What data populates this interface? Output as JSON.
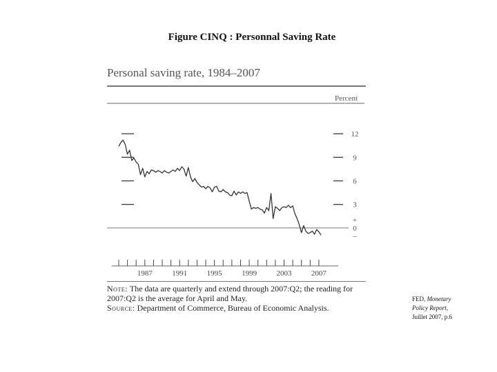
{
  "slide": {
    "title": "Figure CINQ : Personnal Saving Rate"
  },
  "chart_data": {
    "type": "line",
    "title": "Personal saving rate, 1984–2007",
    "ylabel": "Percent",
    "xlabel": "",
    "ylim": [
      -1.5,
      15
    ],
    "xlim": [
      1984.0,
      2007.8
    ],
    "y_ticks": [
      "12",
      "9",
      "6",
      "3",
      "0"
    ],
    "y_tick_values": [
      12,
      9,
      6,
      3,
      0
    ],
    "y_special_marks": [
      "+",
      "–"
    ],
    "x_ticks": [
      "1987",
      "1991",
      "1995",
      "1999",
      "2003",
      "2007"
    ],
    "x_tick_values": [
      1987,
      1991,
      1995,
      1999,
      2003,
      2007
    ],
    "x_minor_years": [
      1984,
      1985,
      1986,
      1987,
      1988,
      1989,
      1990,
      1991,
      1992,
      1993,
      1994,
      1995,
      1996,
      1997,
      1998,
      1999,
      2000,
      2001,
      2002,
      2003,
      2004,
      2005,
      2006,
      2007
    ],
    "grid": "horizontal reference at 0",
    "series": [
      {
        "name": "Personal saving rate",
        "x": [
          1984.0,
          1984.25,
          1984.5,
          1984.75,
          1985.0,
          1985.25,
          1985.5,
          1985.75,
          1986.0,
          1986.25,
          1986.5,
          1986.75,
          1987.0,
          1987.25,
          1987.5,
          1987.75,
          1988.0,
          1988.25,
          1988.5,
          1988.75,
          1989.0,
          1989.25,
          1989.5,
          1989.75,
          1990.0,
          1990.25,
          1990.5,
          1990.75,
          1991.0,
          1991.25,
          1991.5,
          1991.75,
          1992.0,
          1992.25,
          1992.5,
          1992.75,
          1993.0,
          1993.25,
          1993.5,
          1993.75,
          1994.0,
          1994.25,
          1994.5,
          1994.75,
          1995.0,
          1995.25,
          1995.5,
          1995.75,
          1996.0,
          1996.25,
          1996.5,
          1996.75,
          1997.0,
          1997.25,
          1997.5,
          1997.75,
          1998.0,
          1998.25,
          1998.5,
          1998.75,
          1999.0,
          1999.25,
          1999.5,
          1999.75,
          2000.0,
          2000.25,
          2000.5,
          2000.75,
          2001.0,
          2001.25,
          2001.5,
          2001.75,
          2002.0,
          2002.25,
          2002.5,
          2002.75,
          2003.0,
          2003.25,
          2003.5,
          2003.75,
          2004.0,
          2004.25,
          2004.5,
          2004.75,
          2005.0,
          2005.25,
          2005.5,
          2005.75,
          2006.0,
          2006.25,
          2006.5,
          2006.75,
          2007.0,
          2007.25
        ],
        "values": [
          10.4,
          10.9,
          11.2,
          10.6,
          9.4,
          9.9,
          8.6,
          8.9,
          8.4,
          8.1,
          6.8,
          7.6,
          6.5,
          7.2,
          6.9,
          7.4,
          7.3,
          7.1,
          7.3,
          7.2,
          7.0,
          7.3,
          7.1,
          7.0,
          7.2,
          7.4,
          7.2,
          7.6,
          7.3,
          7.8,
          7.5,
          6.6,
          7.7,
          6.5,
          5.9,
          6.3,
          5.8,
          5.5,
          5.2,
          5.3,
          5.0,
          5.3,
          5.1,
          4.6,
          5.2,
          5.3,
          4.7,
          4.6,
          4.9,
          4.6,
          4.5,
          4.2,
          4.1,
          4.7,
          4.2,
          4.6,
          4.4,
          4.6,
          4.4,
          4.5,
          3.4,
          2.4,
          2.6,
          2.5,
          2.6,
          2.4,
          2.3,
          1.9,
          2.6,
          2.2,
          4.4,
          1.2,
          2.7,
          2.5,
          2.2,
          2.6,
          2.7,
          2.6,
          2.9,
          2.6,
          2.8,
          1.8,
          1.2,
          0.4,
          -0.6,
          0.3,
          -0.4,
          -0.7,
          -0.6,
          -0.4,
          -0.8,
          -0.2,
          -0.5,
          -0.9
        ]
      }
    ],
    "note_label": "Note:",
    "note_text": "The data are quarterly and extend through 2007:Q2; the reading for 2007:Q2 is the average for April and May.",
    "source_label": "Source:",
    "source_text": "Department of Commerce, Bureau of Economic Analysis."
  },
  "citation": {
    "line1_prefix": "FED, ",
    "line1_italic": "Monetary",
    "line2_italic": "Policy Report,",
    "line3": "Juillet 2007, p.6"
  }
}
